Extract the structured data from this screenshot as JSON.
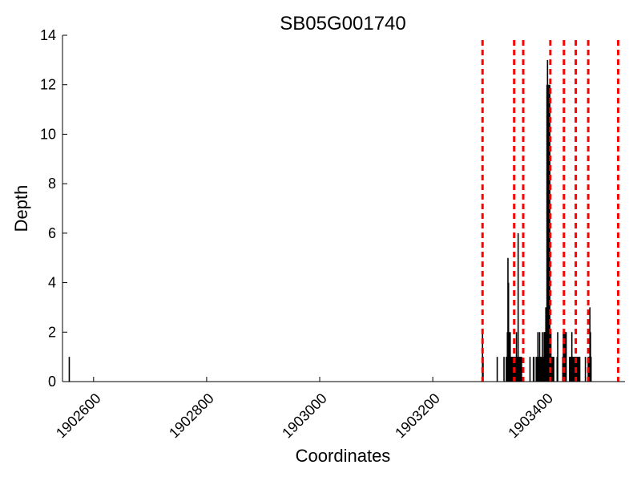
{
  "chart_data": {
    "type": "bar",
    "title": "SB05G001740",
    "xlabel": "Coordinates",
    "ylabel": "Depth",
    "xlim": [
      1902545,
      1903540
    ],
    "ylim": [
      0,
      14
    ],
    "x_ticks": [
      1902600,
      1902800,
      1903000,
      1903200,
      1903400
    ],
    "x_tick_labels": [
      "1902600",
      "1902800",
      "1903000",
      "1903200",
      "1903400"
    ],
    "y_ticks": [
      0,
      2,
      4,
      6,
      8,
      10,
      12,
      14
    ],
    "y_tick_labels": [
      "0",
      "2",
      "4",
      "6",
      "8",
      "10",
      "12",
      "14"
    ],
    "grid": false,
    "bar_color": "#000000",
    "marker_color": "#ff0000",
    "series": [
      {
        "x": [
          1902557,
          1903288,
          1903289,
          1903314,
          1903326,
          1903330,
          1903331,
          1903332,
          1903333,
          1903334,
          1903335,
          1903336,
          1903337,
          1903338,
          1903339,
          1903340,
          1903341,
          1903342,
          1903343,
          1903344,
          1903345,
          1903346,
          1903347,
          1903348,
          1903349,
          1903350,
          1903351,
          1903352,
          1903353,
          1903354,
          1903355,
          1903356,
          1903357,
          1903372,
          1903378,
          1903379,
          1903383,
          1903384,
          1903385,
          1903386,
          1903387,
          1903388,
          1903389,
          1903390,
          1903391,
          1903393,
          1903394,
          1903395,
          1903396,
          1903397,
          1903398,
          1903399,
          1903400,
          1903401,
          1903402,
          1903403,
          1903404,
          1903405,
          1903406,
          1903407,
          1903408,
          1903409,
          1903410,
          1903411,
          1903412,
          1903413,
          1903414,
          1903420,
          1903421,
          1903430,
          1903431,
          1903432,
          1903433,
          1903434,
          1903435,
          1903436,
          1903442,
          1903444,
          1903445,
          1903446,
          1903447,
          1903448,
          1903449,
          1903451,
          1903452,
          1903453,
          1903454,
          1903455,
          1903456,
          1903457,
          1903458,
          1903459,
          1903460,
          1903470,
          1903475,
          1903476,
          1903477,
          1903478,
          1903479,
          1903480
        ],
        "values": [
          1,
          2,
          1,
          1,
          1,
          1,
          1,
          2,
          5,
          4,
          2,
          1,
          2,
          1,
          1,
          1,
          1,
          1,
          1,
          1,
          1,
          1,
          1,
          2,
          1,
          1,
          6,
          1,
          1,
          1,
          1,
          1,
          1,
          1,
          1,
          1,
          1,
          1,
          1,
          2,
          1,
          1,
          2,
          1,
          1,
          1,
          2,
          1,
          1,
          2,
          2,
          2,
          3,
          3,
          12,
          13,
          12,
          11,
          12,
          12,
          2,
          2,
          1,
          1,
          1,
          1,
          1,
          1,
          2,
          1,
          2,
          2,
          2,
          2,
          2,
          2,
          1,
          1,
          1,
          2,
          1,
          1,
          1,
          1,
          1,
          1,
          1,
          1,
          1,
          1,
          1,
          1,
          1,
          1,
          1,
          1,
          1,
          3,
          2,
          1
        ]
      }
    ],
    "vlines": [
      1903288,
      1903344,
      1903360,
      1903408,
      1903432,
      1903453,
      1903475,
      1903528
    ]
  }
}
